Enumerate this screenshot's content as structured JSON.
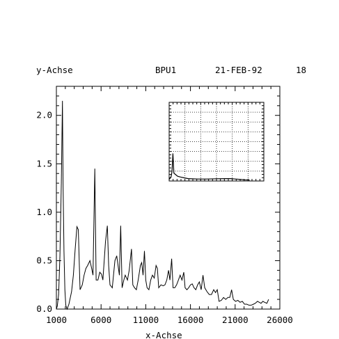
{
  "header": {
    "ylabel": "y-Achse",
    "name": "BPU1",
    "date": "21-FEB-92",
    "number": "18"
  },
  "chart_data": {
    "type": "line",
    "xlabel": "x-Achse",
    "ylabel": "y-Achse",
    "xlim": [
      1000,
      26000
    ],
    "ylim": [
      0,
      2.3
    ],
    "x_ticks": [
      1000,
      6000,
      11000,
      16000,
      21000,
      26000
    ],
    "y_ticks": [
      0.0,
      0.5,
      1.0,
      1.5,
      2.0
    ],
    "x_tick_labels": [
      "1000",
      "6000",
      "11000",
      "16000",
      "21000",
      "26000"
    ],
    "y_tick_labels": [
      "0.0",
      "0.5",
      "1.0",
      "1.5",
      "2.0"
    ],
    "grid": false,
    "series": [
      {
        "values": [
          [
            1000,
            0.0
          ],
          [
            1100,
            0.03
          ],
          [
            1250,
            0.15
          ],
          [
            1400,
            0.55
          ],
          [
            1550,
            1.3
          ],
          [
            1680,
            2.15
          ],
          [
            1750,
            1.3
          ],
          [
            1850,
            0.6
          ],
          [
            1950,
            0.2
          ],
          [
            2050,
            0.04
          ],
          [
            2200,
            0.0
          ],
          [
            2400,
            0.05
          ],
          [
            2700,
            0.18
          ],
          [
            2900,
            0.35
          ],
          [
            3100,
            0.62
          ],
          [
            3300,
            0.85
          ],
          [
            3450,
            0.82
          ],
          [
            3650,
            0.2
          ],
          [
            3900,
            0.25
          ],
          [
            4100,
            0.35
          ],
          [
            4300,
            0.42
          ],
          [
            4500,
            0.45
          ],
          [
            4750,
            0.5
          ],
          [
            4950,
            0.42
          ],
          [
            5100,
            0.35
          ],
          [
            5300,
            1.45
          ],
          [
            5450,
            0.3
          ],
          [
            5650,
            0.3
          ],
          [
            5850,
            0.38
          ],
          [
            6050,
            0.36
          ],
          [
            6200,
            0.3
          ],
          [
            6500,
            0.7
          ],
          [
            6700,
            0.86
          ],
          [
            6850,
            0.45
          ],
          [
            7000,
            0.25
          ],
          [
            7250,
            0.22
          ],
          [
            7550,
            0.5
          ],
          [
            7750,
            0.55
          ],
          [
            7900,
            0.45
          ],
          [
            8050,
            0.35
          ],
          [
            8200,
            0.86
          ],
          [
            8350,
            0.22
          ],
          [
            8550,
            0.3
          ],
          [
            8700,
            0.35
          ],
          [
            8950,
            0.3
          ],
          [
            9150,
            0.4
          ],
          [
            9400,
            0.62
          ],
          [
            9550,
            0.25
          ],
          [
            9750,
            0.22
          ],
          [
            9950,
            0.2
          ],
          [
            10150,
            0.3
          ],
          [
            10400,
            0.45
          ],
          [
            10550,
            0.48
          ],
          [
            10700,
            0.35
          ],
          [
            10850,
            0.6
          ],
          [
            11000,
            0.3
          ],
          [
            11150,
            0.22
          ],
          [
            11350,
            0.2
          ],
          [
            11550,
            0.3
          ],
          [
            11750,
            0.35
          ],
          [
            11950,
            0.32
          ],
          [
            12150,
            0.45
          ],
          [
            12300,
            0.42
          ],
          [
            12450,
            0.22
          ],
          [
            12700,
            0.25
          ],
          [
            12950,
            0.24
          ],
          [
            13150,
            0.25
          ],
          [
            13350,
            0.3
          ],
          [
            13550,
            0.4
          ],
          [
            13700,
            0.3
          ],
          [
            13900,
            0.52
          ],
          [
            14050,
            0.22
          ],
          [
            14250,
            0.22
          ],
          [
            14450,
            0.25
          ],
          [
            14650,
            0.3
          ],
          [
            14850,
            0.35
          ],
          [
            15050,
            0.3
          ],
          [
            15250,
            0.38
          ],
          [
            15400,
            0.22
          ],
          [
            15600,
            0.2
          ],
          [
            15800,
            0.22
          ],
          [
            16000,
            0.25
          ],
          [
            16200,
            0.26
          ],
          [
            16400,
            0.22
          ],
          [
            16600,
            0.2
          ],
          [
            16800,
            0.25
          ],
          [
            17000,
            0.28
          ],
          [
            17200,
            0.2
          ],
          [
            17400,
            0.35
          ],
          [
            17600,
            0.22
          ],
          [
            17850,
            0.18
          ],
          [
            18100,
            0.15
          ],
          [
            18350,
            0.15
          ],
          [
            18600,
            0.2
          ],
          [
            18800,
            0.17
          ],
          [
            19000,
            0.2
          ],
          [
            19200,
            0.08
          ],
          [
            19450,
            0.09
          ],
          [
            19700,
            0.12
          ],
          [
            19950,
            0.1
          ],
          [
            20200,
            0.12
          ],
          [
            20400,
            0.12
          ],
          [
            20600,
            0.2
          ],
          [
            20800,
            0.1
          ],
          [
            21050,
            0.08
          ],
          [
            21300,
            0.09
          ],
          [
            21550,
            0.07
          ],
          [
            21800,
            0.08
          ],
          [
            22050,
            0.05
          ],
          [
            22300,
            0.05
          ],
          [
            22550,
            0.04
          ],
          [
            22800,
            0.04
          ],
          [
            23050,
            0.05
          ],
          [
            23250,
            0.06
          ],
          [
            23500,
            0.08
          ],
          [
            23700,
            0.07
          ],
          [
            23900,
            0.06
          ],
          [
            24100,
            0.08
          ],
          [
            24300,
            0.07
          ],
          [
            24550,
            0.06
          ],
          [
            24750,
            0.1
          ]
        ]
      }
    ],
    "inset": {
      "grid": true,
      "xlim": [
        0,
        1
      ],
      "ylim": [
        0,
        1
      ],
      "series": [
        [
          0.0,
          0.02
        ],
        [
          0.02,
          0.05
        ],
        [
          0.03,
          0.12
        ],
        [
          0.04,
          0.35
        ],
        [
          0.05,
          0.1
        ],
        [
          0.07,
          0.08
        ],
        [
          0.09,
          0.06
        ],
        [
          0.12,
          0.05
        ],
        [
          0.16,
          0.04
        ],
        [
          0.2,
          0.03
        ],
        [
          0.3,
          0.025
        ],
        [
          0.4,
          0.025
        ],
        [
          0.5,
          0.028
        ],
        [
          0.6,
          0.03
        ],
        [
          0.65,
          0.03
        ],
        [
          0.7,
          0.025
        ],
        [
          0.75,
          0.02
        ],
        [
          0.8,
          0.015
        ],
        [
          0.85,
          0.012
        ]
      ]
    }
  }
}
